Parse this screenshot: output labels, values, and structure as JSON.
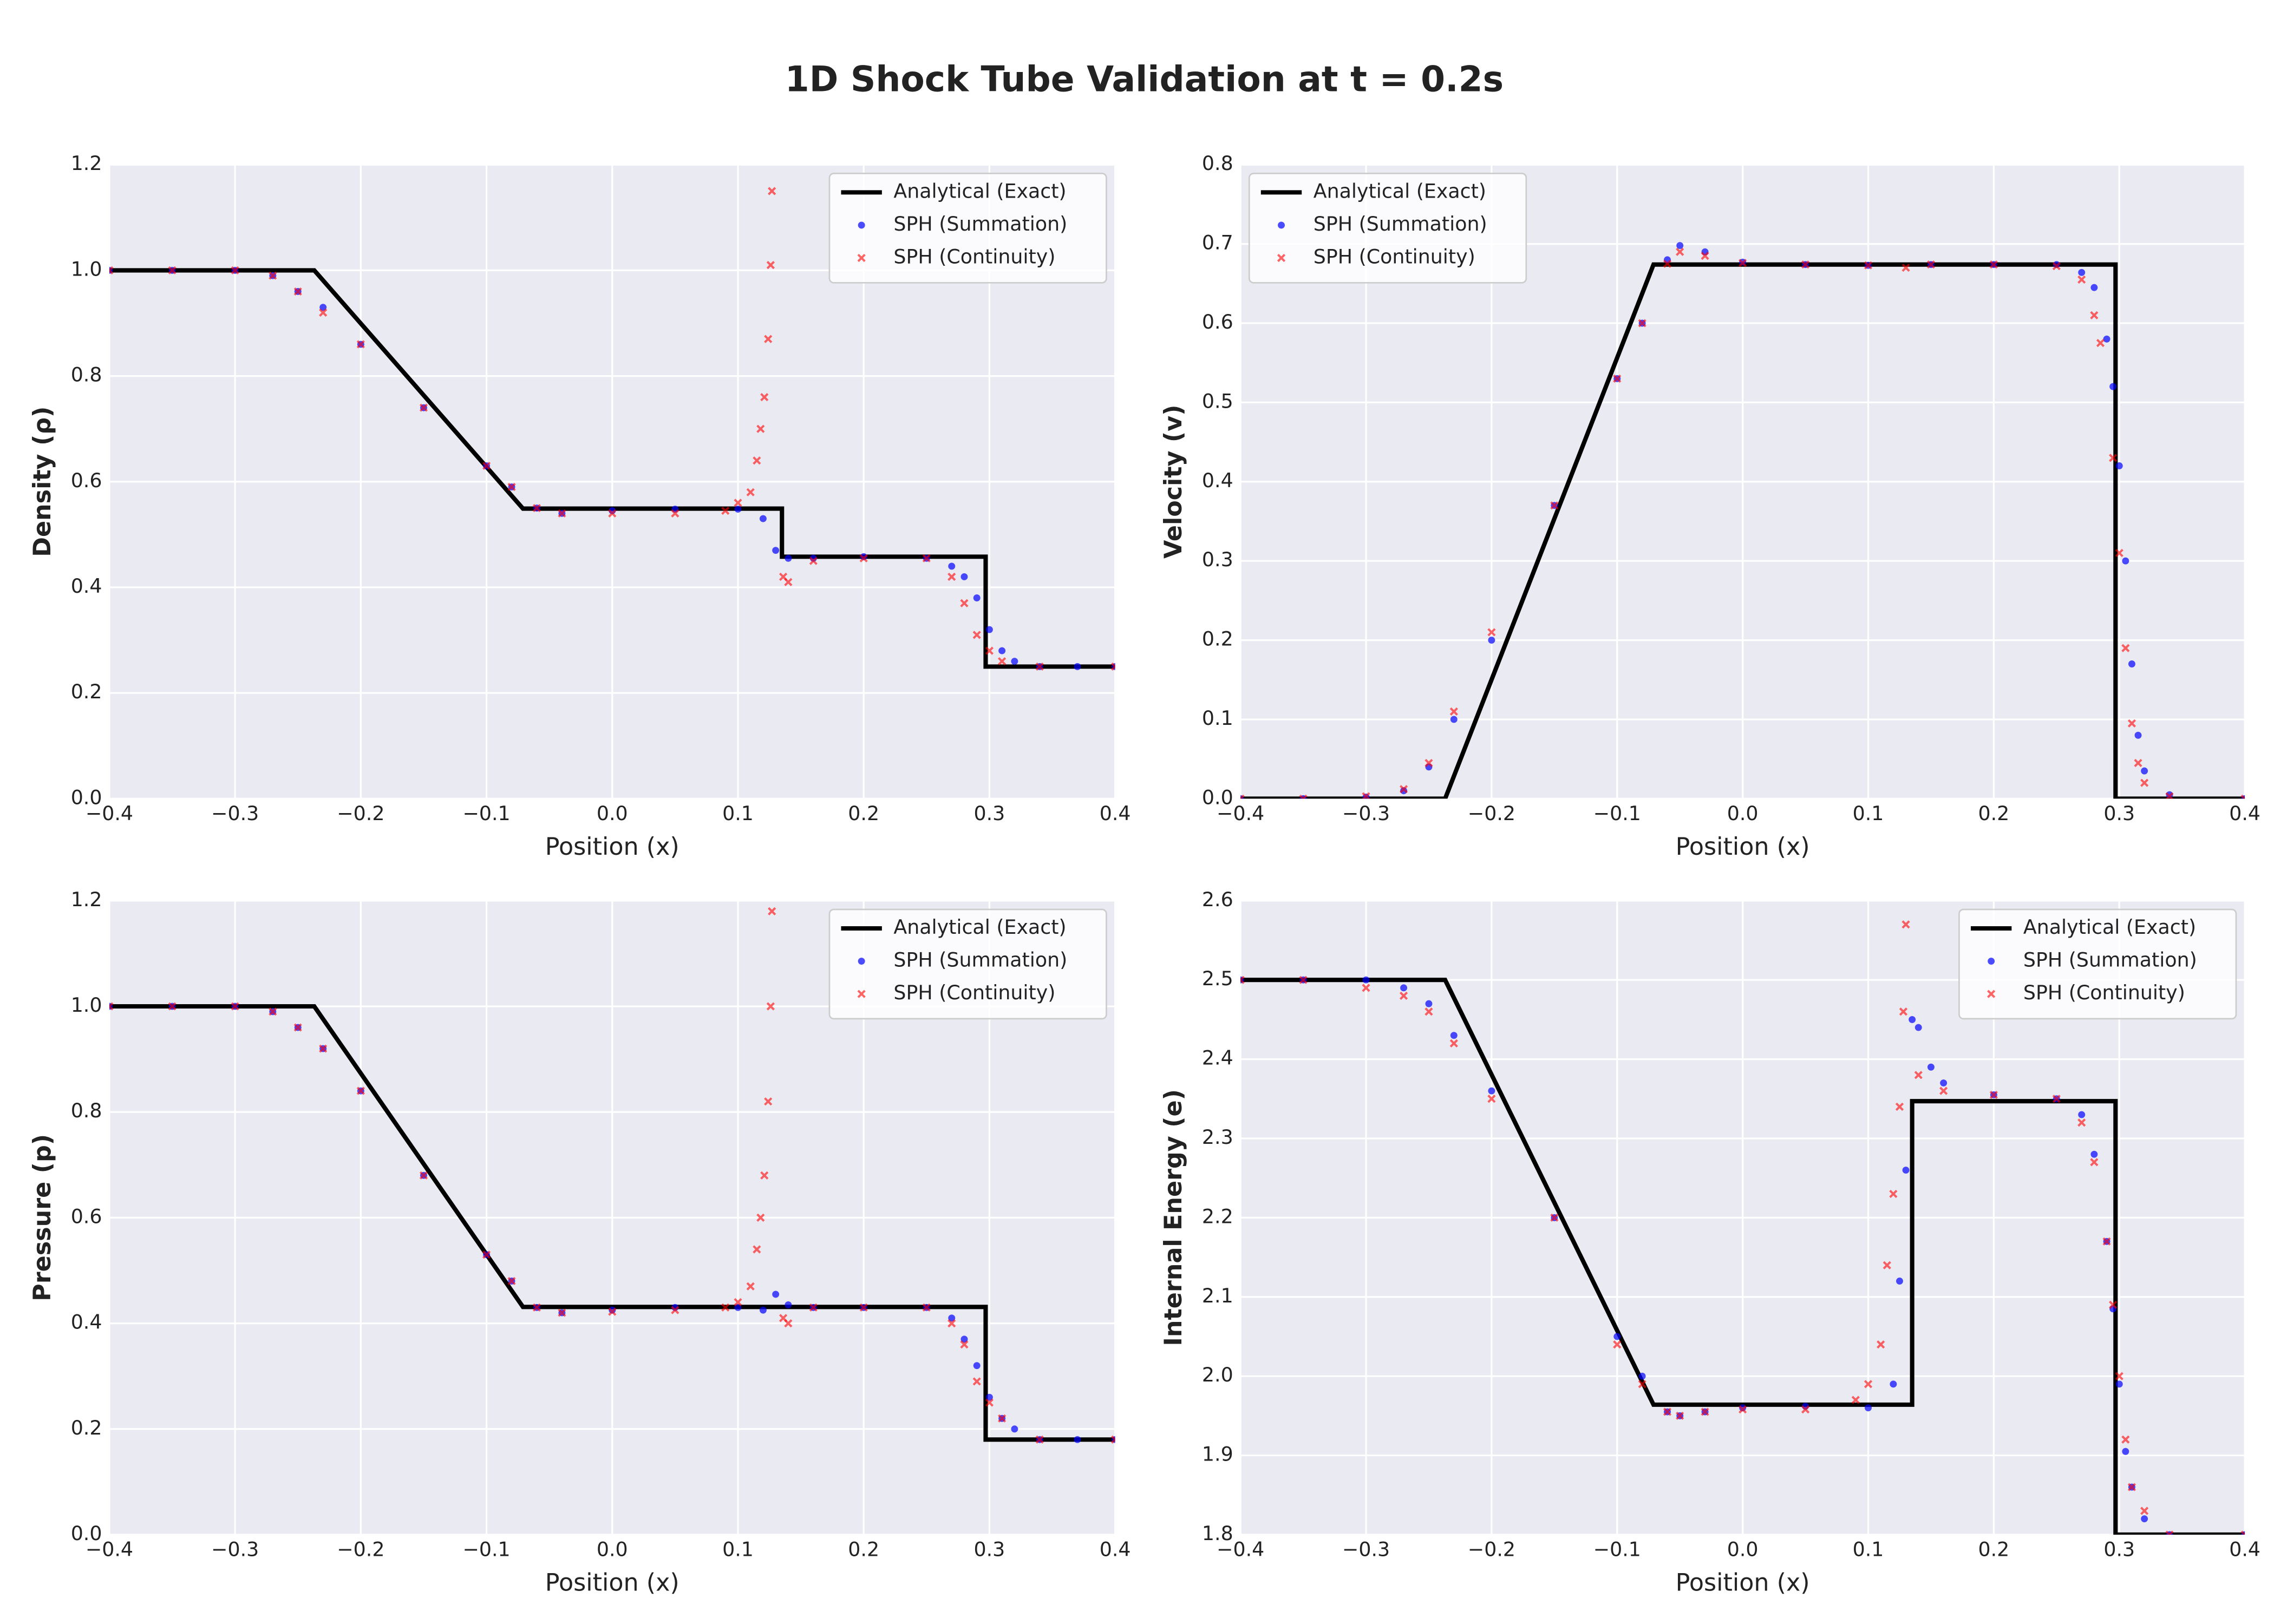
{
  "title": "1D Shock Tube Validation at t = 0.2s",
  "chart_data": [
    {
      "type": "line",
      "xlabel": "Position (x)",
      "ylabel": "Density (ρ)",
      "legend": "upper right",
      "grid": true,
      "xlim": [
        -0.4,
        0.4
      ],
      "ylim": [
        0,
        1.2
      ],
      "xticks": [
        {
          "value": -0.4,
          "label": "−0.4"
        },
        {
          "value": -0.3,
          "label": "−0.3"
        },
        {
          "value": -0.2,
          "label": "−0.2"
        },
        {
          "value": -0.1,
          "label": "−0.1"
        },
        {
          "value": 0,
          "label": "0.0"
        },
        0.1,
        0.2,
        0.3,
        0.4
      ],
      "yticks": [
        {
          "value": 0,
          "label": "0.0"
        },
        0.2,
        0.4,
        0.6,
        0.8,
        {
          "value": 1,
          "label": "1.0"
        },
        1.2
      ],
      "series": [
        {
          "name": "Analytical (Exact)",
          "color": "#000000",
          "marker": "line",
          "x": [
            -0.4,
            -0.237,
            -0.071,
            0.135,
            0.135,
            0.297,
            0.297,
            0.4
          ],
          "values": [
            1,
            1,
            0.549,
            0.549,
            0.458,
            0.458,
            0.25,
            0.25
          ]
        },
        {
          "name": "SPH (Summation)",
          "color": "#0000ff",
          "marker": "o",
          "x": [
            -0.4,
            -0.35,
            -0.3,
            -0.27,
            -0.25,
            -0.23,
            -0.2,
            -0.15,
            -0.1,
            -0.08,
            -0.06,
            -0.04,
            0,
            0.05,
            0.1,
            0.12,
            0.13,
            0.14,
            0.16,
            0.2,
            0.25,
            0.27,
            0.28,
            0.29,
            0.3,
            0.31,
            0.32,
            0.34,
            0.37,
            0.4
          ],
          "values": [
            1,
            1,
            1,
            0.99,
            0.96,
            0.93,
            0.86,
            0.74,
            0.63,
            0.59,
            0.55,
            0.54,
            0.545,
            0.548,
            0.548,
            0.53,
            0.47,
            0.455,
            0.455,
            0.458,
            0.455,
            0.44,
            0.42,
            0.38,
            0.32,
            0.28,
            0.26,
            0.25,
            0.25,
            0.25
          ]
        },
        {
          "name": "SPH (Continuity)",
          "color": "#ff0000",
          "marker": "x",
          "x": [
            -0.4,
            -0.35,
            -0.3,
            -0.27,
            -0.25,
            -0.23,
            -0.2,
            -0.15,
            -0.1,
            -0.08,
            -0.06,
            -0.04,
            0,
            0.05,
            0.09,
            0.1,
            0.11,
            0.115,
            0.118,
            0.121,
            0.124,
            0.126,
            0.127,
            0.136,
            0.14,
            0.16,
            0.2,
            0.25,
            0.27,
            0.28,
            0.29,
            0.3,
            0.31,
            0.34,
            0.4
          ],
          "values": [
            1,
            1,
            1,
            0.99,
            0.96,
            0.92,
            0.86,
            0.74,
            0.63,
            0.59,
            0.55,
            0.54,
            0.54,
            0.54,
            0.545,
            0.56,
            0.58,
            0.64,
            0.7,
            0.76,
            0.87,
            1.01,
            1.15,
            0.42,
            0.41,
            0.45,
            0.455,
            0.455,
            0.42,
            0.37,
            0.31,
            0.28,
            0.26,
            0.25,
            0.25
          ]
        }
      ]
    },
    {
      "type": "line",
      "xlabel": "Position (x)",
      "ylabel": "Velocity (v)",
      "legend": "upper left",
      "grid": true,
      "xlim": [
        -0.4,
        0.4
      ],
      "ylim": [
        0,
        0.8
      ],
      "xticks": [
        {
          "value": -0.4,
          "label": "−0.4"
        },
        {
          "value": -0.3,
          "label": "−0.3"
        },
        {
          "value": -0.2,
          "label": "−0.2"
        },
        {
          "value": -0.1,
          "label": "−0.1"
        },
        {
          "value": 0,
          "label": "0.0"
        },
        0.1,
        0.2,
        0.3,
        0.4
      ],
      "yticks": [
        {
          "value": 0,
          "label": "0.0"
        },
        0.1,
        0.2,
        0.3,
        0.4,
        0.5,
        0.6,
        0.7,
        0.8
      ],
      "series": [
        {
          "name": "Analytical (Exact)",
          "color": "#000000",
          "marker": "line",
          "x": [
            -0.4,
            -0.237,
            -0.071,
            0.297,
            0.297,
            0.4
          ],
          "values": [
            0,
            0,
            0.674,
            0.674,
            0,
            0
          ]
        },
        {
          "name": "SPH (Summation)",
          "color": "#0000ff",
          "marker": "o",
          "x": [
            -0.4,
            -0.35,
            -0.3,
            -0.27,
            -0.25,
            -0.23,
            -0.2,
            -0.15,
            -0.1,
            -0.08,
            -0.06,
            -0.05,
            -0.03,
            0,
            0.05,
            0.1,
            0.15,
            0.2,
            0.25,
            0.27,
            0.28,
            0.29,
            0.295,
            0.3,
            0.305,
            0.31,
            0.315,
            0.32,
            0.34,
            0.4
          ],
          "values": [
            0,
            0,
            0.002,
            0.01,
            0.04,
            0.1,
            0.2,
            0.37,
            0.53,
            0.6,
            0.68,
            0.698,
            0.69,
            0.677,
            0.674,
            0.673,
            0.674,
            0.674,
            0.674,
            0.664,
            0.645,
            0.58,
            0.52,
            0.42,
            0.3,
            0.17,
            0.08,
            0.035,
            0.005,
            0
          ]
        },
        {
          "name": "SPH (Continuity)",
          "color": "#ff0000",
          "marker": "x",
          "x": [
            -0.4,
            -0.35,
            -0.3,
            -0.27,
            -0.25,
            -0.23,
            -0.2,
            -0.15,
            -0.1,
            -0.08,
            -0.06,
            -0.05,
            -0.03,
            0,
            0.05,
            0.1,
            0.13,
            0.15,
            0.2,
            0.25,
            0.27,
            0.28,
            0.285,
            0.295,
            0.3,
            0.305,
            0.31,
            0.315,
            0.32,
            0.34,
            0.4
          ],
          "values": [
            0,
            0,
            0.003,
            0.012,
            0.045,
            0.11,
            0.21,
            0.37,
            0.53,
            0.6,
            0.675,
            0.69,
            0.685,
            0.676,
            0.674,
            0.673,
            0.67,
            0.674,
            0.674,
            0.672,
            0.655,
            0.61,
            0.575,
            0.43,
            0.31,
            0.19,
            0.095,
            0.045,
            0.02,
            0.003,
            0
          ]
        }
      ]
    },
    {
      "type": "line",
      "xlabel": "Position (x)",
      "ylabel": "Pressure (p)",
      "legend": "upper right",
      "grid": true,
      "xlim": [
        -0.4,
        0.4
      ],
      "ylim": [
        0,
        1.2
      ],
      "xticks": [
        {
          "value": -0.4,
          "label": "−0.4"
        },
        {
          "value": -0.3,
          "label": "−0.3"
        },
        {
          "value": -0.2,
          "label": "−0.2"
        },
        {
          "value": -0.1,
          "label": "−0.1"
        },
        {
          "value": 0,
          "label": "0.0"
        },
        0.1,
        0.2,
        0.3,
        0.4
      ],
      "yticks": [
        {
          "value": 0,
          "label": "0.0"
        },
        0.2,
        0.4,
        0.6,
        0.8,
        {
          "value": 1,
          "label": "1.0"
        },
        1.2
      ],
      "series": [
        {
          "name": "Analytical (Exact)",
          "color": "#000000",
          "marker": "line",
          "x": [
            -0.4,
            -0.237,
            -0.071,
            0.297,
            0.297,
            0.4
          ],
          "values": [
            1,
            1,
            0.431,
            0.431,
            0.18,
            0.18
          ]
        },
        {
          "name": "SPH (Summation)",
          "color": "#0000ff",
          "marker": "o",
          "x": [
            -0.4,
            -0.35,
            -0.3,
            -0.27,
            -0.25,
            -0.23,
            -0.2,
            -0.15,
            -0.1,
            -0.08,
            -0.06,
            -0.04,
            0,
            0.05,
            0.1,
            0.12,
            0.13,
            0.14,
            0.16,
            0.2,
            0.25,
            0.27,
            0.28,
            0.29,
            0.3,
            0.31,
            0.32,
            0.34,
            0.37,
            0.4
          ],
          "values": [
            1,
            1,
            1,
            0.99,
            0.96,
            0.92,
            0.84,
            0.68,
            0.53,
            0.48,
            0.43,
            0.42,
            0.425,
            0.43,
            0.43,
            0.425,
            0.455,
            0.435,
            0.43,
            0.43,
            0.43,
            0.41,
            0.37,
            0.32,
            0.26,
            0.22,
            0.2,
            0.18,
            0.18,
            0.18
          ]
        },
        {
          "name": "SPH (Continuity)",
          "color": "#ff0000",
          "marker": "x",
          "x": [
            -0.4,
            -0.35,
            -0.3,
            -0.27,
            -0.25,
            -0.23,
            -0.2,
            -0.15,
            -0.1,
            -0.08,
            -0.06,
            -0.04,
            0,
            0.05,
            0.09,
            0.1,
            0.11,
            0.115,
            0.118,
            0.121,
            0.124,
            0.126,
            0.127,
            0.136,
            0.14,
            0.16,
            0.2,
            0.25,
            0.27,
            0.28,
            0.29,
            0.3,
            0.31,
            0.34,
            0.4
          ],
          "values": [
            1,
            1,
            1,
            0.99,
            0.96,
            0.92,
            0.84,
            0.68,
            0.53,
            0.48,
            0.43,
            0.42,
            0.422,
            0.425,
            0.43,
            0.44,
            0.47,
            0.54,
            0.6,
            0.68,
            0.82,
            1.0,
            1.18,
            0.41,
            0.4,
            0.43,
            0.43,
            0.43,
            0.4,
            0.36,
            0.29,
            0.25,
            0.22,
            0.18,
            0.18
          ]
        }
      ]
    },
    {
      "type": "line",
      "xlabel": "Position (x)",
      "ylabel": "Internal Energy (e)",
      "legend": "upper right",
      "grid": true,
      "xlim": [
        -0.4,
        0.4
      ],
      "ylim": [
        1.8,
        2.6
      ],
      "xticks": [
        {
          "value": -0.4,
          "label": "−0.4"
        },
        {
          "value": -0.3,
          "label": "−0.3"
        },
        {
          "value": -0.2,
          "label": "−0.2"
        },
        {
          "value": -0.1,
          "label": "−0.1"
        },
        {
          "value": 0,
          "label": "0.0"
        },
        0.1,
        0.2,
        0.3,
        0.4
      ],
      "yticks": [
        1.8,
        1.9,
        {
          "value": 2,
          "label": "2.0"
        },
        2.1,
        2.2,
        2.3,
        2.4,
        2.5,
        2.6
      ],
      "series": [
        {
          "name": "Analytical (Exact)",
          "color": "#000000",
          "marker": "line",
          "x": [
            -0.4,
            -0.237,
            -0.071,
            0.135,
            0.135,
            0.297,
            0.297,
            0.4
          ],
          "values": [
            2.5,
            2.5,
            1.964,
            1.964,
            2.347,
            2.347,
            1.8,
            1.8
          ]
        },
        {
          "name": "SPH (Summation)",
          "color": "#0000ff",
          "marker": "o",
          "x": [
            -0.4,
            -0.35,
            -0.3,
            -0.27,
            -0.25,
            -0.23,
            -0.2,
            -0.15,
            -0.1,
            -0.08,
            -0.06,
            -0.05,
            -0.03,
            0,
            0.05,
            0.1,
            0.12,
            0.125,
            0.13,
            0.135,
            0.14,
            0.15,
            0.16,
            0.2,
            0.25,
            0.27,
            0.28,
            0.29,
            0.295,
            0.3,
            0.305,
            0.31,
            0.32,
            0.34,
            0.4
          ],
          "values": [
            2.5,
            2.5,
            2.5,
            2.49,
            2.47,
            2.43,
            2.36,
            2.2,
            2.05,
            2.0,
            1.955,
            1.95,
            1.955,
            1.96,
            1.962,
            1.96,
            1.99,
            2.12,
            2.26,
            2.45,
            2.44,
            2.39,
            2.37,
            2.355,
            2.35,
            2.33,
            2.28,
            2.17,
            2.085,
            1.99,
            1.905,
            1.86,
            1.82,
            1.8,
            1.8
          ]
        },
        {
          "name": "SPH (Continuity)",
          "color": "#ff0000",
          "marker": "x",
          "x": [
            -0.4,
            -0.35,
            -0.3,
            -0.27,
            -0.25,
            -0.23,
            -0.2,
            -0.15,
            -0.1,
            -0.08,
            -0.06,
            -0.05,
            -0.03,
            0,
            0.05,
            0.09,
            0.1,
            0.11,
            0.115,
            0.12,
            0.125,
            0.128,
            0.13,
            0.14,
            0.16,
            0.2,
            0.25,
            0.27,
            0.28,
            0.29,
            0.295,
            0.3,
            0.305,
            0.31,
            0.32,
            0.34,
            0.4
          ],
          "values": [
            2.5,
            2.5,
            2.49,
            2.48,
            2.46,
            2.42,
            2.35,
            2.2,
            2.04,
            1.99,
            1.955,
            1.95,
            1.955,
            1.958,
            1.958,
            1.97,
            1.99,
            2.04,
            2.14,
            2.23,
            2.34,
            2.46,
            2.57,
            2.38,
            2.36,
            2.355,
            2.35,
            2.32,
            2.27,
            2.17,
            2.09,
            2.0,
            1.92,
            1.86,
            1.83,
            1.8,
            1.8
          ]
        }
      ]
    }
  ]
}
